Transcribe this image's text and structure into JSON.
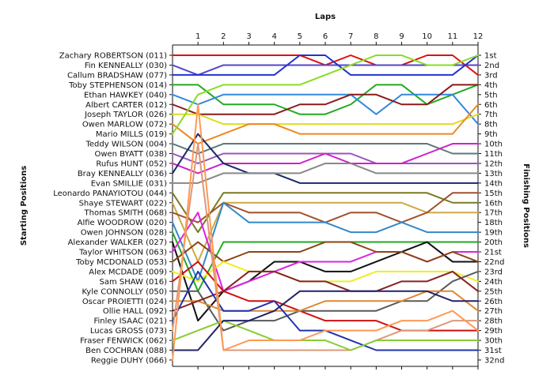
{
  "chart_data": {
    "type": "line",
    "title": "",
    "xlabel": "Laps",
    "ylabel_left": "Starting Positions",
    "ylabel_right": "Finishing Positions",
    "laps": [
      1,
      2,
      3,
      4,
      5,
      6,
      7,
      8,
      9,
      10,
      11,
      12
    ],
    "starting_labels": [
      "Zachary ROBERTSON (011)",
      "Fin KENNEALLY (030)",
      "Callum BRADSHAW (077)",
      "Toby STEPHENSON (014)",
      "Ethan HAWKEY (040)",
      "Albert CARTER (012)",
      "Joseph TAYLOR (026)",
      "Owen MARLOW (072)",
      "Mario MILLS (019)",
      "Teddy WILSON (004)",
      "Owen BYATT (038)",
      "Rufus HUNT (052)",
      "Bray KENNEALLY (036)",
      "Evan SMILLIE (031)",
      "Leonardo PANAYIOTOU (044)",
      "Shaye STEWART (022)",
      "Thomas SMITH (068)",
      "Alfie WOODROW (020)",
      "Owen JOHNSON (028)",
      "Alexander WALKER (027)",
      "Taylor WHITSON (063)",
      "Toby MCDONALD (053)",
      "Alex MCDADE (009)",
      "Sam SHAW (016)",
      "Kyle CONNOLLY (050)",
      "Oscar PROIETTI (024)",
      "Ollie HALL (092)",
      "Finley ISAAC (021)",
      "Lucas GROSS (073)",
      "Fraser FENWICK (062)",
      "Ben COCHRAN (088)",
      "Reggie DUHY (066)"
    ],
    "finishing_labels": [
      "1st",
      "2nd",
      "3rd",
      "4th",
      "5th",
      "6th",
      "7th",
      "8th",
      "9th",
      "10th",
      "11th",
      "12th",
      "13th",
      "14th",
      "15th",
      "16th",
      "17th",
      "18th",
      "19th",
      "20th",
      "21st",
      "22nd",
      "23rd",
      "24th",
      "25th",
      "26th",
      "27th",
      "28th",
      "29th",
      "30th",
      "31st",
      "32nd"
    ],
    "series": [
      {
        "color": "#dd1111",
        "positions": [
          1,
          1,
          1,
          1,
          1,
          2,
          1,
          2,
          2,
          1,
          1,
          3
        ]
      },
      {
        "color": "#5544cc",
        "positions": [
          3,
          2,
          2,
          2,
          2,
          2,
          2,
          2,
          2,
          2,
          2,
          2
        ]
      },
      {
        "color": "#2233cc",
        "positions": [
          3,
          3,
          3,
          3,
          1,
          1,
          3,
          3,
          3,
          3,
          3,
          1
        ]
      },
      {
        "color": "#22aa22",
        "positions": [
          4,
          6,
          6,
          6,
          7,
          7,
          6,
          4,
          4,
          6,
          5,
          4
        ]
      },
      {
        "color": "#3388dd",
        "positions": [
          6,
          5,
          5,
          5,
          5,
          5,
          5,
          7,
          5,
          5,
          5,
          8
        ]
      },
      {
        "color": "#8b1a1a",
        "positions": [
          7,
          7,
          7,
          7,
          6,
          6,
          5,
          5,
          6,
          6,
          4,
          4
        ]
      },
      {
        "color": "#dddd22",
        "positions": [
          7,
          8,
          8,
          8,
          8,
          8,
          8,
          8,
          8,
          8,
          8,
          7
        ]
      },
      {
        "color": "#ee8822",
        "positions": [
          10,
          9,
          8,
          8,
          9,
          9,
          9,
          9,
          9,
          9,
          9,
          6
        ]
      },
      {
        "color": "#88dd22",
        "positions": [
          5,
          4,
          4,
          4,
          4,
          3,
          2,
          1,
          1,
          2,
          2,
          1
        ]
      },
      {
        "color": "#5a7a7a",
        "positions": [
          11,
          10,
          10,
          10,
          10,
          10,
          10,
          10,
          10,
          10,
          11,
          11
        ]
      },
      {
        "color": "#9955bb",
        "positions": [
          12,
          11,
          11,
          11,
          11,
          11,
          11,
          12,
          12,
          12,
          12,
          12
        ]
      },
      {
        "color": "#cc22cc",
        "positions": [
          13,
          12,
          12,
          12,
          12,
          11,
          12,
          12,
          12,
          11,
          10,
          10
        ]
      },
      {
        "color": "#1a2a6a",
        "positions": [
          9,
          12,
          13,
          13,
          14,
          14,
          14,
          14,
          14,
          14,
          14,
          14
        ]
      },
      {
        "color": "#888888",
        "positions": [
          14,
          13,
          13,
          13,
          13,
          12,
          12,
          13,
          13,
          13,
          13,
          13
        ]
      },
      {
        "color": "#7a7a22",
        "positions": [
          19,
          15,
          15,
          15,
          15,
          15,
          15,
          15,
          15,
          15,
          16,
          16
        ]
      },
      {
        "color": "#ccaa44",
        "positions": [
          22,
          16,
          16,
          16,
          16,
          16,
          16,
          16,
          16,
          17,
          17,
          17
        ]
      },
      {
        "color": "#a0522d",
        "positions": [
          18,
          16,
          17,
          17,
          17,
          18,
          17,
          17,
          18,
          17,
          15,
          15
        ]
      },
      {
        "color": "#3388cc",
        "positions": [
          24,
          16,
          18,
          18,
          18,
          18,
          19,
          19,
          18,
          19,
          19,
          19
        ]
      },
      {
        "color": "#22aa22",
        "positions": [
          25,
          20,
          20,
          20,
          20,
          20,
          20,
          20,
          20,
          20,
          20,
          20
        ]
      },
      {
        "color": "#111111",
        "positions": [
          28,
          25,
          24,
          22,
          22,
          23,
          23,
          22,
          21,
          20,
          22,
          22
        ]
      },
      {
        "color": "#dd22dd",
        "positions": [
          17,
          25,
          24,
          23,
          22,
          22,
          22,
          21,
          21,
          22,
          21,
          21
        ]
      },
      {
        "color": "#8b4513",
        "positions": [
          20,
          22,
          21,
          21,
          21,
          20,
          20,
          21,
          21,
          22,
          21,
          22
        ]
      },
      {
        "color": "#eeee22",
        "positions": [
          24,
          22,
          23,
          23,
          24,
          24,
          24,
          23,
          23,
          23,
          23,
          24
        ]
      },
      {
        "color": "#cc1111",
        "positions": [
          22,
          25,
          26,
          26,
          27,
          28,
          28,
          28,
          29,
          29,
          29,
          29
        ]
      },
      {
        "color": "#5a5a5a",
        "positions": [
          25,
          29,
          28,
          28,
          27,
          27,
          27,
          27,
          26,
          26,
          24,
          23
        ]
      },
      {
        "color": "#dd8833",
        "positions": [
          26,
          27,
          27,
          27,
          27,
          26,
          26,
          26,
          26,
          25,
          25,
          27
        ]
      },
      {
        "color": "#882222",
        "positions": [
          26,
          25,
          23,
          23,
          24,
          24,
          25,
          25,
          24,
          24,
          23,
          25
        ]
      },
      {
        "color": "#2233aa",
        "positions": [
          23,
          27,
          27,
          26,
          29,
          29,
          30,
          31,
          31,
          31,
          31,
          31
        ]
      },
      {
        "color": "#dd9977",
        "positions": [
          10,
          31,
          31,
          31,
          31,
          31,
          31,
          30,
          29,
          29,
          28,
          28
        ]
      },
      {
        "color": "#88cc33",
        "positions": [
          29,
          28,
          29,
          30,
          30,
          30,
          31,
          30,
          30,
          30,
          30,
          30
        ]
      },
      {
        "color": "#222266",
        "positions": [
          31,
          28,
          28,
          27,
          25,
          25,
          25,
          25,
          25,
          25,
          26,
          26
        ]
      },
      {
        "color": "#ff9955",
        "positions": [
          6,
          31,
          30,
          30,
          30,
          29,
          29,
          29,
          28,
          28,
          27,
          29
        ]
      }
    ]
  }
}
